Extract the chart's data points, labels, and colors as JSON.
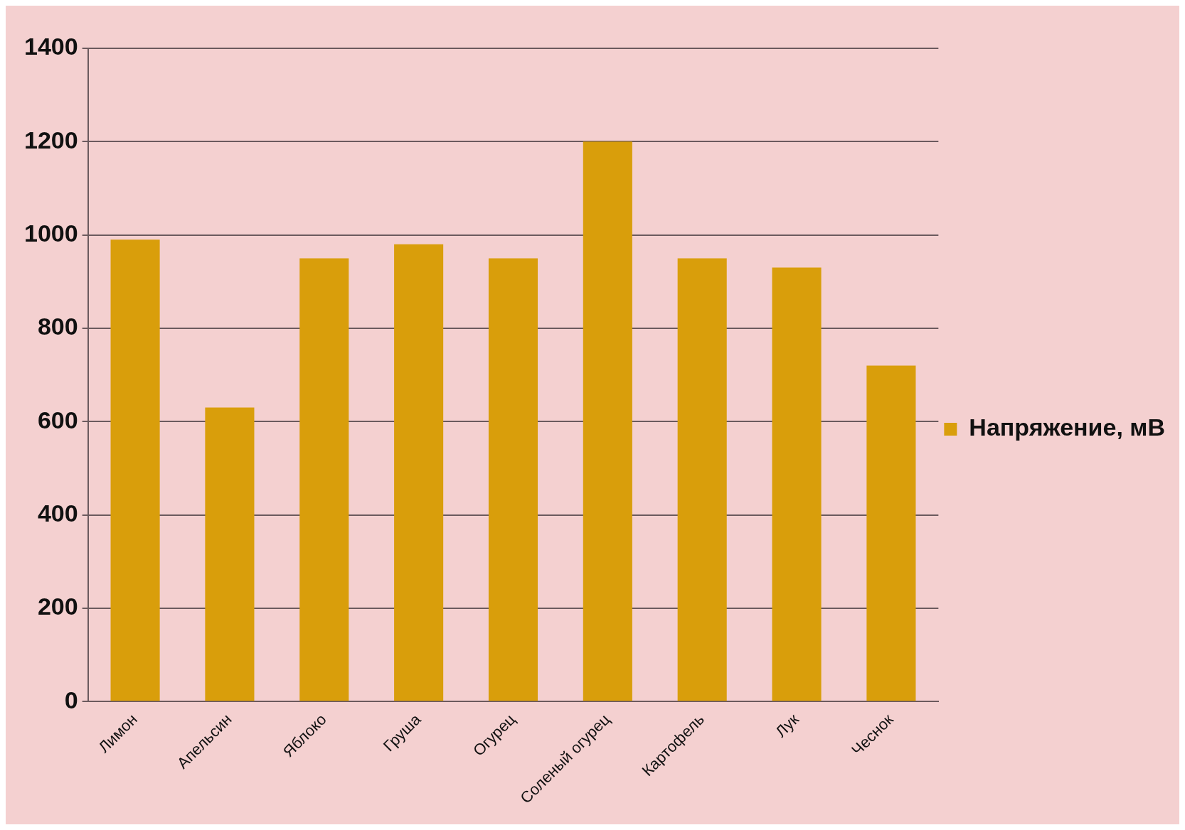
{
  "chart_data": {
    "type": "bar",
    "categories": [
      "Лимон",
      "Апельсин",
      "Яблоко",
      "Груша",
      "Огурец",
      "Соленый огурец",
      "Картофель",
      "Лук",
      "Чеснок"
    ],
    "series": [
      {
        "name": "Напряжение, мВ",
        "color": "#d99e0b",
        "values": [
          990,
          630,
          950,
          980,
          950,
          1200,
          950,
          930,
          720
        ]
      }
    ],
    "ylim": [
      0,
      1400
    ],
    "yticks": [
      0,
      200,
      400,
      600,
      800,
      1000,
      1200,
      1400
    ],
    "grid": "y",
    "legend": "right"
  }
}
